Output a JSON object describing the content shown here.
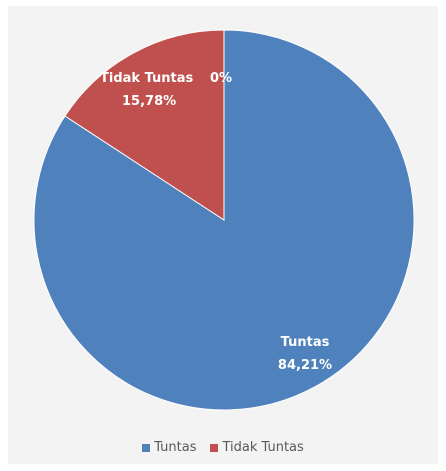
{
  "chart_data": {
    "type": "pie",
    "slices": [
      {
        "name": "Tuntas",
        "value": 84.21,
        "label": "Tuntas",
        "value_label": "84,21%",
        "color": "#4f81bd"
      },
      {
        "name": "Tidak Tuntas",
        "value": 15.78,
        "label": "Tidak Tuntas",
        "value_label": "15,78%",
        "color": "#c0504d"
      }
    ],
    "extra_label": "0%",
    "legend": {
      "placement": "bottom",
      "entries": [
        {
          "name": "Tuntas",
          "color": "#4f81bd"
        },
        {
          "name": "Tidak Tuntas",
          "color": "#c0504d"
        }
      ]
    }
  }
}
